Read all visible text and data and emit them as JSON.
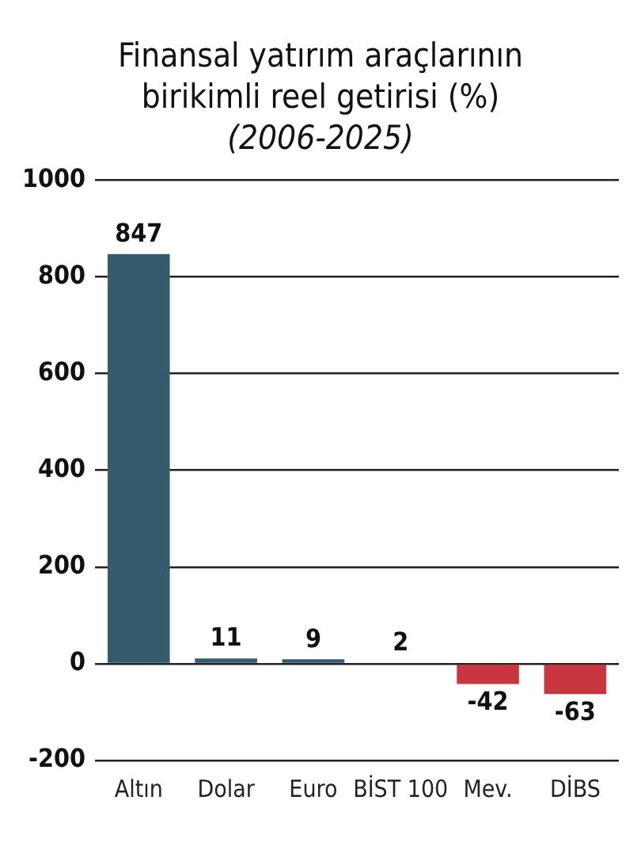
{
  "chart_data": {
    "type": "bar",
    "title": "Finansal yatırım araçlarının birikimli reel getirisi (%)",
    "subtitle": "(2006-2025)",
    "categories": [
      "Altın",
      "Dolar",
      "Euro",
      "BİST 100",
      "Mev.",
      "DİBS"
    ],
    "values": [
      847,
      11,
      9,
      2,
      -42,
      -63
    ],
    "colors": [
      "#365a6e",
      "#365a6e",
      "#365a6e",
      "#365a6e",
      "#c8363f",
      "#c8363f"
    ],
    "ylim": [
      -200,
      1000
    ],
    "yticks": [
      -200,
      0,
      200,
      400,
      600,
      800,
      1000
    ],
    "grid": "y",
    "data_labels": true
  }
}
